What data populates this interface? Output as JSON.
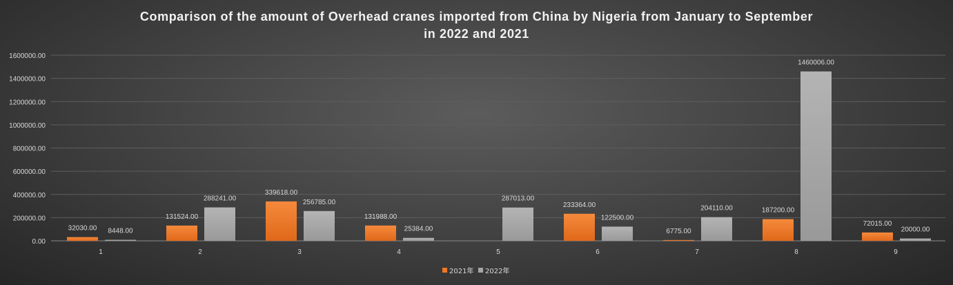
{
  "chart_data": {
    "type": "bar",
    "title_line1": "Comparison of the amount of Overhead cranes imported from China by Nigeria from January to September",
    "title_line2": "in 2022 and 2021",
    "categories": [
      "1",
      "2",
      "3",
      "4",
      "5",
      "6",
      "7",
      "8",
      "9"
    ],
    "series": [
      {
        "name": "2021年",
        "color": "#f07a24",
        "values": [
          32030,
          131524,
          339618,
          131988,
          null,
          233364,
          6775,
          187200,
          72015
        ]
      },
      {
        "name": "2022年",
        "color": "#a6a6a6",
        "values": [
          8448,
          288241,
          256785,
          25384,
          287013,
          122500,
          204110,
          1460006,
          20000
        ]
      }
    ],
    "ylim": [
      0,
      1600000
    ],
    "yticks": [
      0,
      200000,
      400000,
      600000,
      800000,
      1000000,
      1200000,
      1400000,
      1600000
    ],
    "grid": true,
    "legend": "bottom",
    "xlabel": "",
    "ylabel": ""
  }
}
